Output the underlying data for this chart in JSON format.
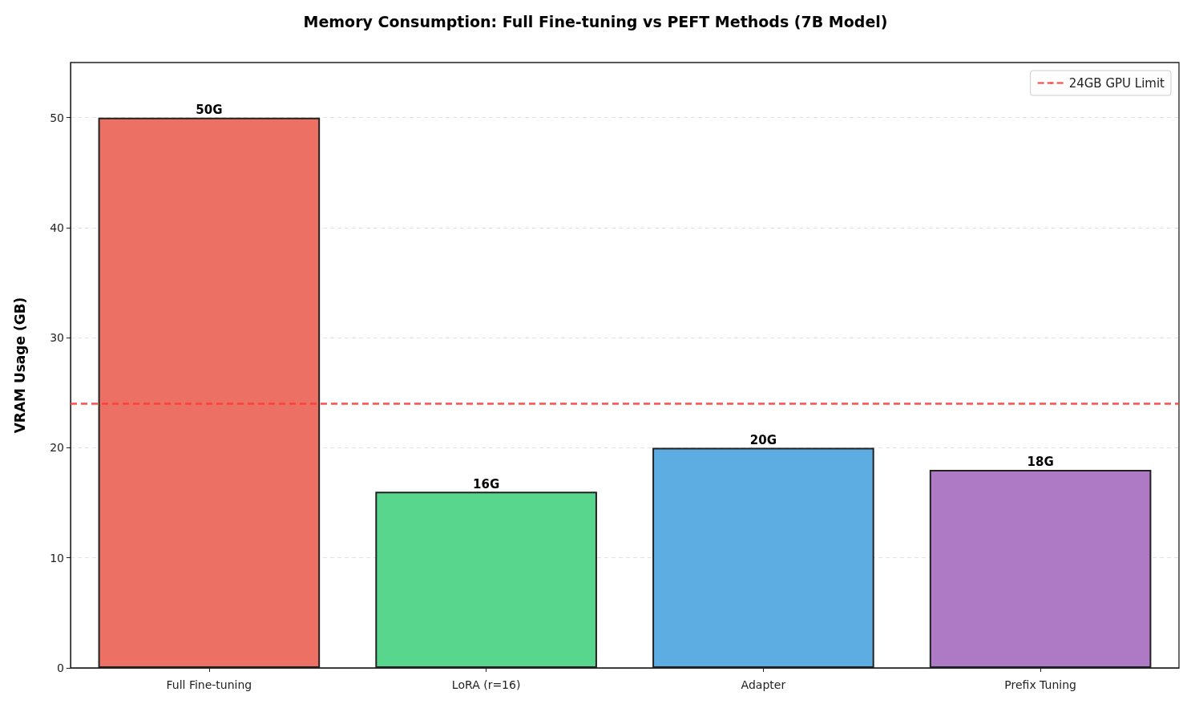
{
  "chart_data": {
    "type": "bar",
    "title": "Memory Consumption: Full Fine-tuning vs PEFT Methods (7B Model)",
    "ylabel": "VRAM Usage (GB)",
    "categories": [
      "Full Fine-tuning",
      "LoRA (r=16)",
      "Adapter",
      "Prefix Tuning"
    ],
    "values": [
      50,
      16,
      20,
      18
    ],
    "colors": [
      "#ec7063",
      "#58d68d",
      "#5dade2",
      "#af7ac5"
    ],
    "value_labels": [
      "50G",
      "16G",
      "20G",
      "18G"
    ],
    "ylim": [
      0,
      55
    ],
    "yticks": [
      0,
      10,
      20,
      30,
      40,
      50
    ],
    "ref_lines": [
      {
        "axis": "y",
        "value": 24,
        "label": "24GB GPU Limit",
        "color": "#ff3b3b",
        "line_style": "dashed"
      }
    ],
    "grid": "y",
    "legend": "top right"
  }
}
